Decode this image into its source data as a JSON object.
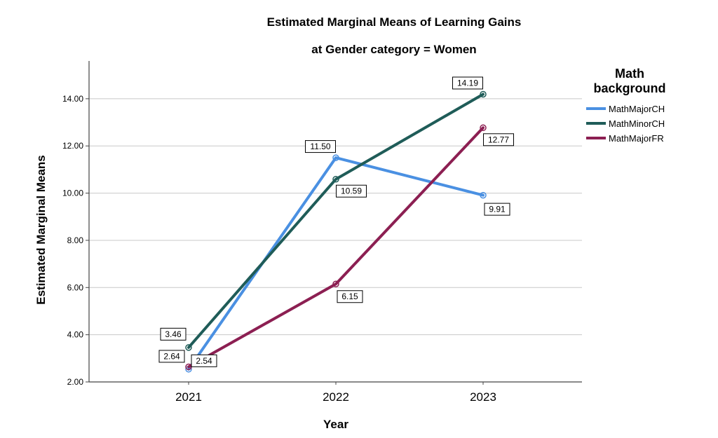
{
  "chart_data": {
    "type": "line",
    "title": "Estimated Marginal Means of Learning Gains",
    "subtitle": "at Gender category = Women",
    "xlabel": "Year",
    "ylabel": "Estimated Marginal Means",
    "categories": [
      "2021",
      "2022",
      "2023"
    ],
    "ylim": [
      2.0,
      15.6
    ],
    "yticks": [
      "2.00",
      "4.00",
      "6.00",
      "8.00",
      "10.00",
      "12.00",
      "14.00"
    ],
    "grid": true,
    "legend": {
      "title_line1": "Math",
      "title_line2": "background",
      "position": "right"
    },
    "series": [
      {
        "name": "MathMajorCH",
        "color": "#4a90e2",
        "values": [
          2.54,
          11.5,
          9.91
        ],
        "labels": [
          "2.54",
          "11.50",
          "9.91"
        ]
      },
      {
        "name": "MathMinorCH",
        "color": "#1f5c58",
        "values": [
          3.46,
          10.59,
          14.19
        ],
        "labels": [
          "3.46",
          "10.59",
          "14.19"
        ]
      },
      {
        "name": "MathMajorFR",
        "color": "#8c1f52",
        "values": [
          2.64,
          6.15,
          12.77
        ],
        "labels": [
          "2.64",
          "6.15",
          "12.77"
        ]
      }
    ]
  }
}
